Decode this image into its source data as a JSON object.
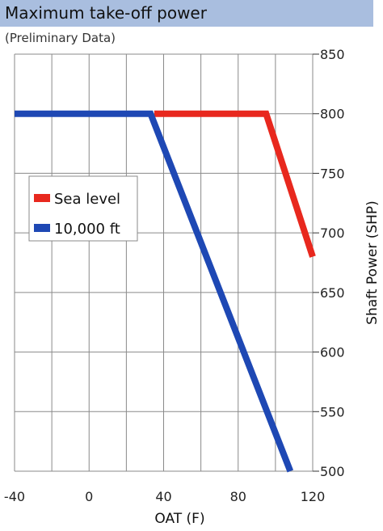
{
  "header": {
    "title": "Maximum take-off power",
    "subtitle": "(Preliminary Data)"
  },
  "colors": {
    "title_bar": "#a9bedf",
    "sea_level": "#e8281e",
    "ten_thousand_ft": "#1e48b4",
    "grid": "#8a8a8a"
  },
  "chart_data": {
    "type": "line",
    "xlabel": "OAT (F)",
    "ylabel": "Shaft Power (SHP)",
    "xlim": [
      -40,
      120
    ],
    "ylim": [
      500,
      850
    ],
    "xticks": [
      -40,
      0,
      40,
      80,
      120
    ],
    "yticks": [
      500,
      550,
      600,
      650,
      700,
      750,
      800,
      850
    ],
    "x_tick_labels": [
      "-40",
      "0",
      "40",
      "80",
      "120"
    ],
    "y_tick_labels": [
      "500",
      "550",
      "600",
      "650",
      "700",
      "750",
      "800",
      "850"
    ],
    "y_axis_side": "right",
    "grid": true,
    "legend_position": "left-middle",
    "series": [
      {
        "name": "Sea level",
        "color": "#e8281e",
        "points": [
          [
            35,
            800
          ],
          [
            95,
            800
          ],
          [
            120,
            680
          ]
        ]
      },
      {
        "name": "10,000 ft",
        "color": "#1e48b4",
        "points": [
          [
            -40,
            800
          ],
          [
            33,
            800
          ],
          [
            108,
            500
          ]
        ]
      }
    ]
  }
}
